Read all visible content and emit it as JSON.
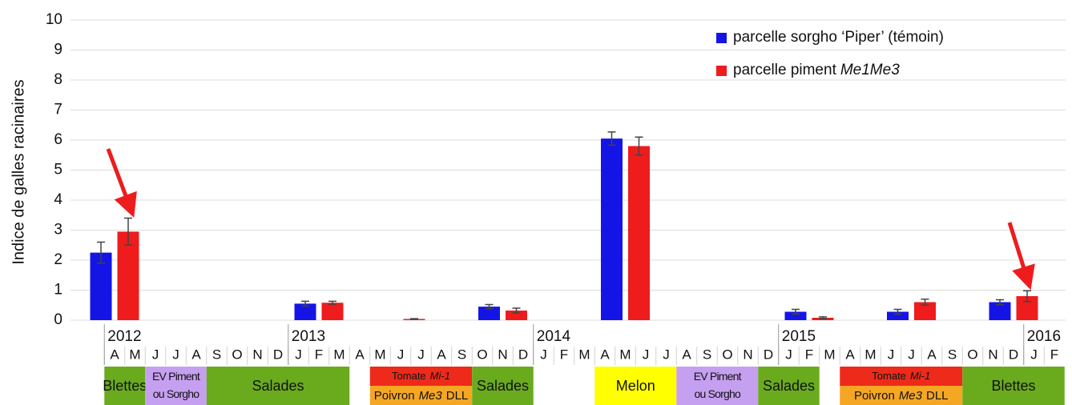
{
  "chart_data": {
    "type": "bar",
    "y_label": "Indice de galles racinaires",
    "categories": [
      "A",
      "M",
      "J",
      "J",
      "A",
      "S",
      "O",
      "N",
      "D",
      "J",
      "F",
      "M",
      "A",
      "M",
      "J",
      "J",
      "A",
      "S",
      "O",
      "N",
      "D",
      "J",
      "F",
      "M",
      "A",
      "M",
      "J",
      "J",
      "A",
      "S",
      "O",
      "N",
      "D",
      "J",
      "F",
      "M",
      "A",
      "M",
      "J",
      "J",
      "A",
      "S",
      "O",
      "N",
      "D",
      "J",
      "F"
    ],
    "years": [
      {
        "label": "2012",
        "month": 0
      },
      {
        "label": "2013",
        "month": 9
      },
      {
        "label": "2014",
        "month": 21
      },
      {
        "label": "2015",
        "month": 33
      },
      {
        "label": "2016",
        "month": 45
      }
    ],
    "series": [
      {
        "name": "parcelle sorgho ‘Piper’ (témoin)",
        "color": "#1414e6",
        "values": [
          2.25,
          null,
          null,
          null,
          null,
          null,
          null,
          null,
          null,
          null,
          0.55,
          null,
          null,
          null,
          null,
          null,
          null,
          null,
          null,
          0.45,
          null,
          null,
          null,
          null,
          null,
          6.05,
          null,
          null,
          null,
          null,
          null,
          null,
          null,
          null,
          0.28,
          null,
          null,
          null,
          null,
          0.28,
          null,
          null,
          null,
          null,
          0.6,
          null,
          null
        ],
        "errors": [
          0.35,
          null,
          null,
          null,
          null,
          null,
          null,
          null,
          null,
          null,
          0.08,
          null,
          null,
          null,
          null,
          null,
          null,
          null,
          null,
          0.07,
          null,
          null,
          null,
          null,
          null,
          0.22,
          null,
          null,
          null,
          null,
          null,
          null,
          null,
          null,
          0.08,
          null,
          null,
          null,
          null,
          0.08,
          null,
          null,
          null,
          null,
          0.08,
          null,
          null
        ]
      },
      {
        "name": [
          {
            "text": "parcelle piment"
          },
          {
            "text": "Me1Me3",
            "italic": true
          }
        ],
        "color": "#ee1c1c",
        "values": [
          2.95,
          null,
          null,
          null,
          null,
          null,
          null,
          null,
          null,
          null,
          0.58,
          null,
          null,
          null,
          0.04,
          null,
          null,
          null,
          null,
          0.32,
          null,
          null,
          null,
          null,
          null,
          5.8,
          null,
          null,
          null,
          null,
          null,
          null,
          null,
          null,
          0.08,
          null,
          null,
          null,
          null,
          0.6,
          null,
          null,
          null,
          null,
          0.8,
          null,
          null
        ],
        "errors": [
          0.45,
          null,
          null,
          null,
          null,
          null,
          null,
          null,
          null,
          null,
          0.05,
          null,
          null,
          null,
          0.01,
          null,
          null,
          null,
          null,
          0.08,
          null,
          null,
          null,
          null,
          null,
          0.3,
          null,
          null,
          null,
          null,
          null,
          null,
          null,
          null,
          0.03,
          null,
          null,
          null,
          null,
          0.1,
          null,
          null,
          null,
          null,
          0.18,
          null,
          null
        ]
      }
    ],
    "ylim": [
      0,
      10
    ],
    "yticks": [
      0,
      1,
      2,
      3,
      4,
      5,
      6,
      7,
      8,
      9,
      10
    ],
    "grid": true,
    "crops": [
      {
        "from": 0,
        "to": 1,
        "color": "#6aab1e",
        "rows": [
          [
            {
              "text": "Blettes"
            }
          ]
        ]
      },
      {
        "from": 2,
        "to": 4,
        "color": "#c6a0f0",
        "rows": [
          [
            {
              "text": "EV Piment"
            }
          ],
          [
            {
              "text": "ou Sorgho"
            }
          ]
        ],
        "stacked": false
      },
      {
        "from": 5,
        "to": 11,
        "color": "#6aab1e",
        "rows": [
          [
            {
              "text": "Salades"
            }
          ]
        ]
      },
      {
        "from": 13,
        "to": 17,
        "colors": [
          "#ee2a1a",
          "#f5a623"
        ],
        "rows": [
          [
            {
              "text": "Tomate"
            },
            {
              "text": "Mi-1",
              "italic": true
            }
          ],
          [
            {
              "text": "Poivron"
            },
            {
              "text": "Me3",
              "italic": true
            },
            {
              "text": "DLL"
            }
          ]
        ],
        "stacked": true
      },
      {
        "from": 18,
        "to": 20,
        "color": "#6aab1e",
        "rows": [
          [
            {
              "text": "Salades"
            }
          ]
        ]
      },
      {
        "from": 24,
        "to": 27,
        "color": "#ffff00",
        "rows": [
          [
            {
              "text": "Melon"
            }
          ]
        ]
      },
      {
        "from": 28,
        "to": 31,
        "color": "#c6a0f0",
        "rows": [
          [
            {
              "text": "EV Piment"
            }
          ],
          [
            {
              "text": "ou Sorgho"
            }
          ]
        ],
        "stacked": false
      },
      {
        "from": 32,
        "to": 34,
        "color": "#6aab1e",
        "rows": [
          [
            {
              "text": "Salades"
            }
          ]
        ]
      },
      {
        "from": 36,
        "to": 41,
        "colors": [
          "#ee2a1a",
          "#f5a623"
        ],
        "rows": [
          [
            {
              "text": "Tomate"
            },
            {
              "text": "Mi-1",
              "italic": true
            }
          ],
          [
            {
              "text": "Poivron"
            },
            {
              "text": "Me3",
              "italic": true
            },
            {
              "text": "DLL"
            }
          ]
        ],
        "stacked": true
      },
      {
        "from": 42,
        "to": 46,
        "color": "#6aab1e",
        "rows": [
          [
            {
              "text": "Blettes"
            }
          ]
        ]
      }
    ]
  }
}
